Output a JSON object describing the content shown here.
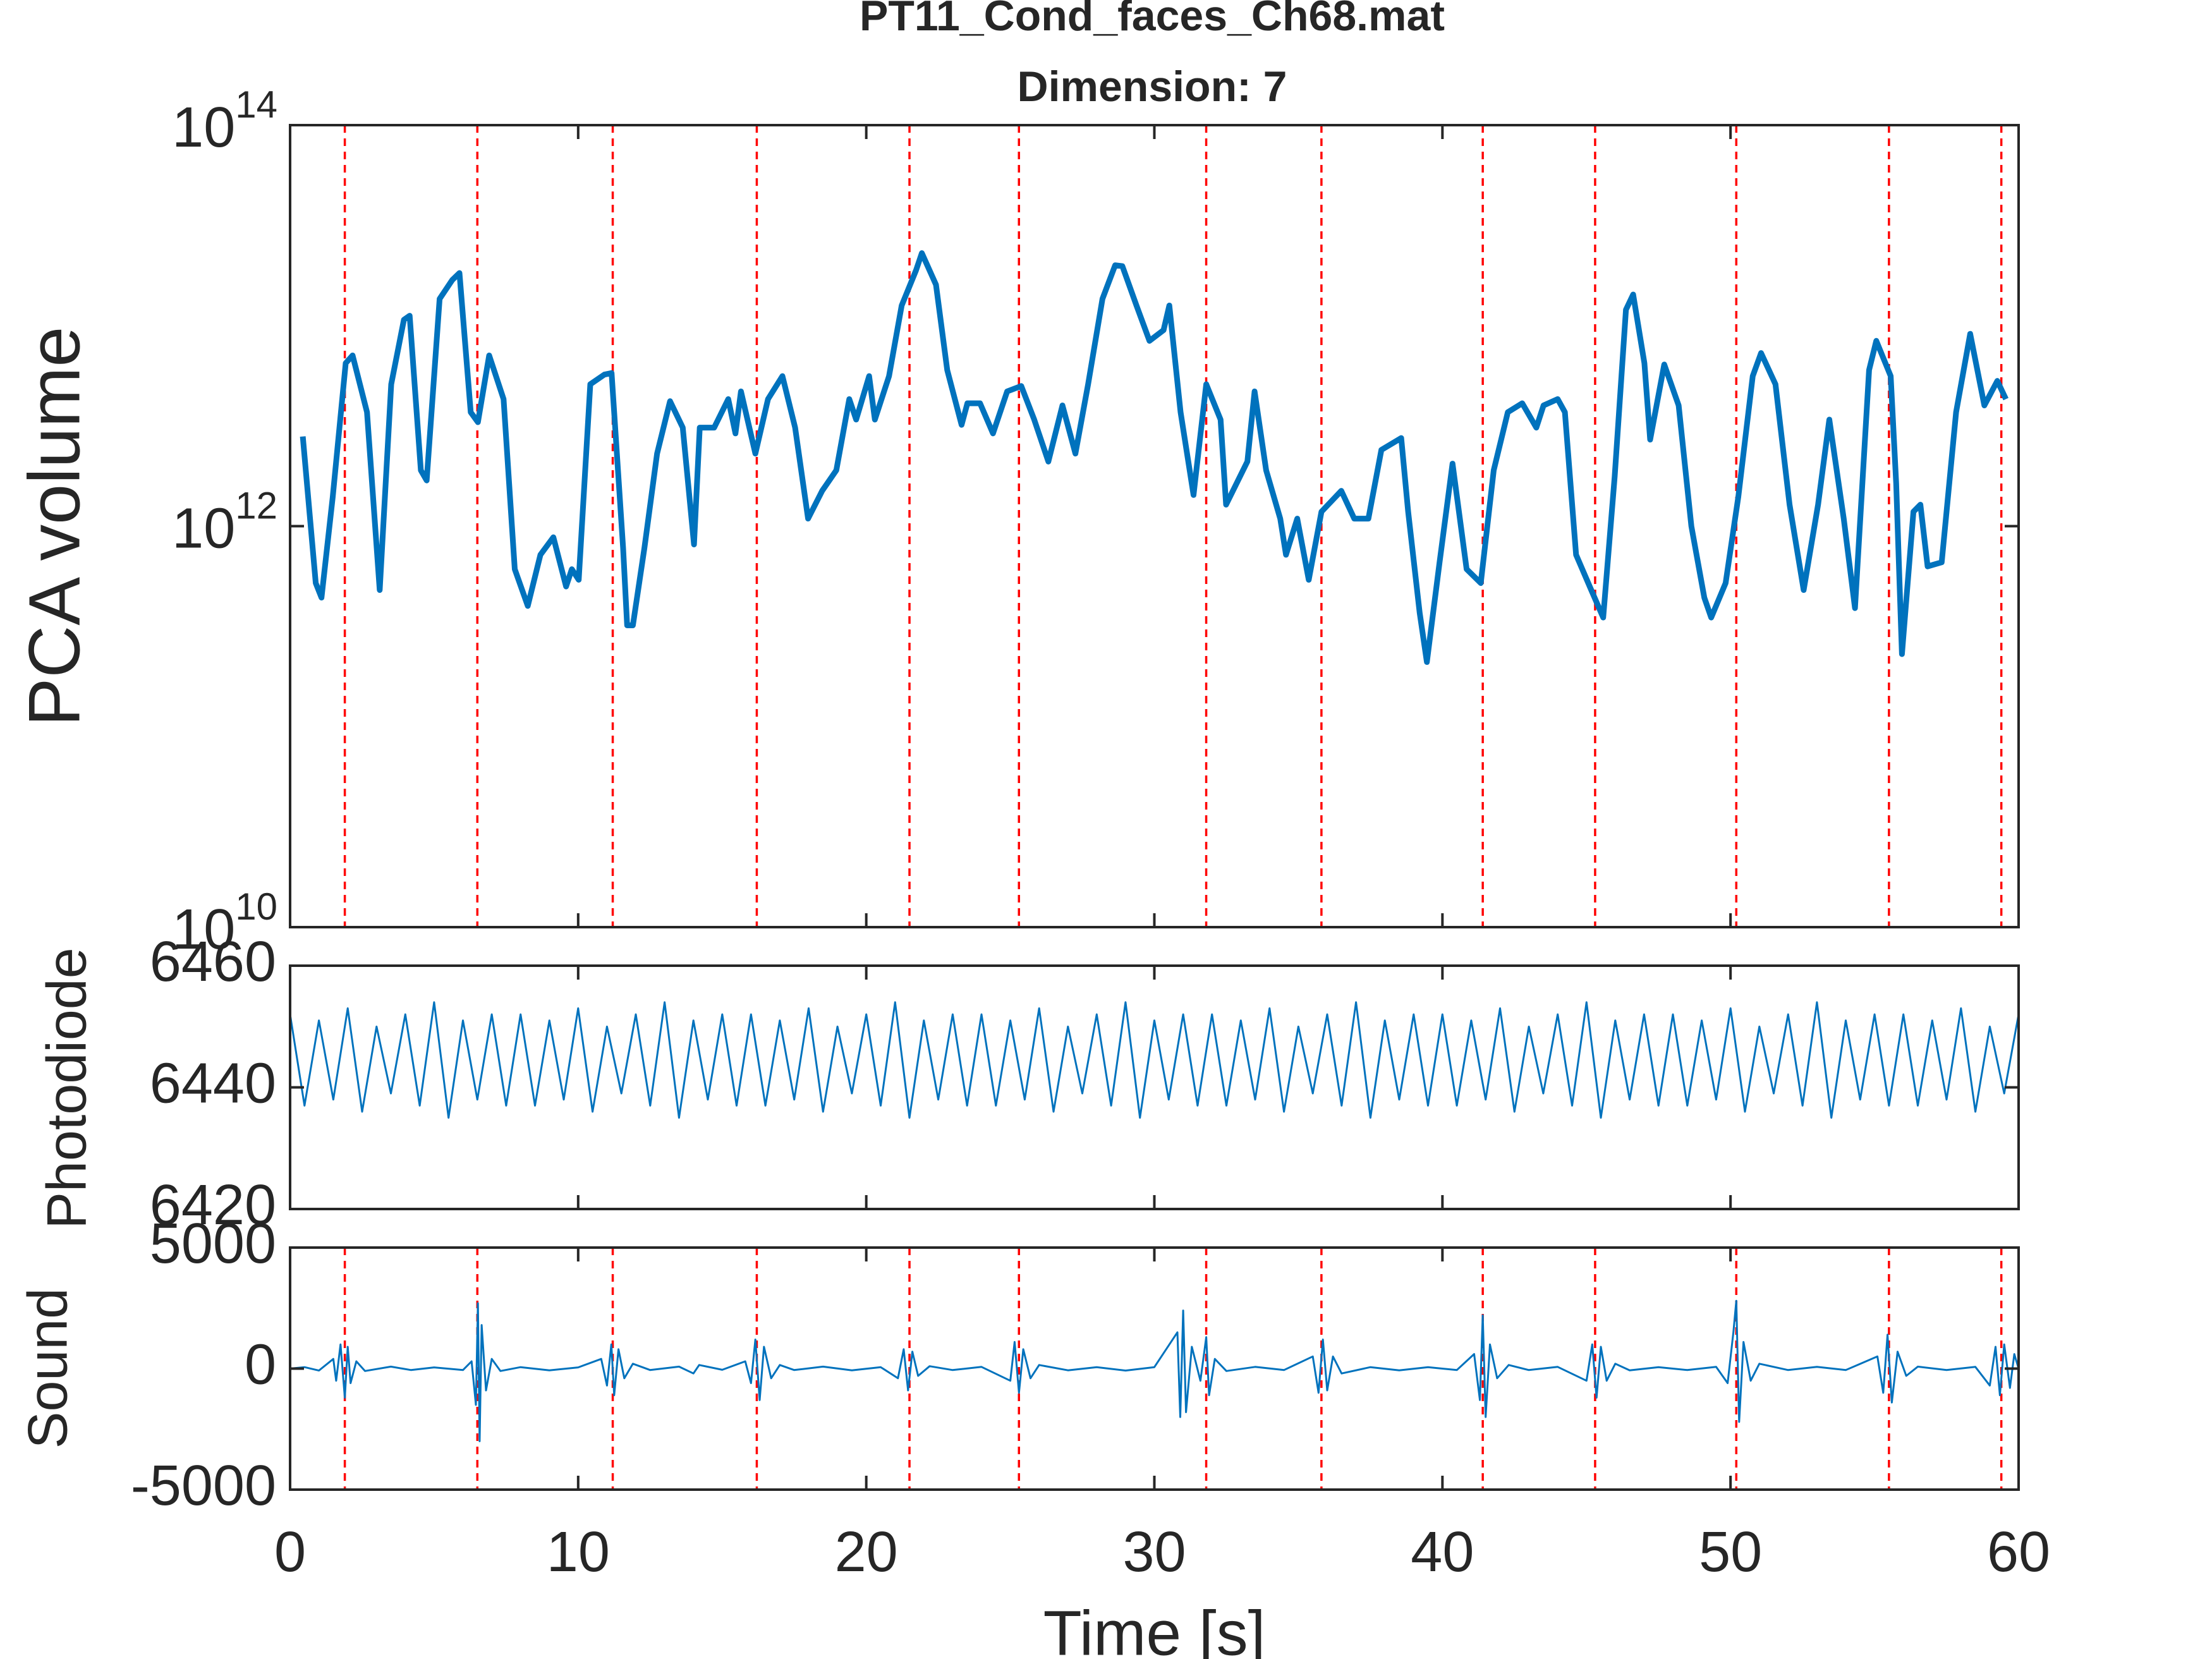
{
  "chart_data": [
    {
      "type": "line",
      "title": "PT11_Cond_faces_Ch68.mat",
      "subtitle": "Dimension: 7",
      "ylabel": "PCA volume",
      "yscale": "log",
      "color": "#0072bd",
      "event_color": "#ff0000",
      "xlim": [
        0,
        60
      ],
      "xticks": [
        0,
        10,
        20,
        30,
        40,
        50,
        60
      ],
      "xtick_labels": false,
      "ylim": [
        10000000000,
        100000000000000
      ],
      "yticks": [
        {
          "value": 10000000000,
          "label": "10",
          "exponent": "10"
        },
        {
          "value": 1000000000000,
          "label": "10",
          "exponent": "12"
        },
        {
          "value": 100000000000000,
          "label": "10",
          "exponent": "14"
        }
      ],
      "event_x": [
        1.9,
        6.5,
        11.2,
        16.2,
        21.5,
        25.3,
        31.8,
        35.8,
        41.4,
        45.3,
        50.2,
        55.5,
        59.4
      ],
      "x": [
        0.44,
        0.89,
        1.09,
        1.48,
        1.93,
        2.17,
        2.67,
        3.11,
        3.51,
        3.95,
        4.15,
        4.54,
        4.74,
        5.19,
        5.63,
        5.88,
        6.27,
        6.52,
        6.91,
        7.41,
        7.8,
        8.25,
        8.69,
        9.14,
        9.58,
        9.78,
        10.02,
        10.42,
        10.91,
        11.16,
        11.56,
        11.7,
        11.9,
        12.3,
        12.74,
        13.19,
        13.63,
        14.02,
        14.22,
        14.72,
        15.21,
        15.46,
        15.65,
        16.15,
        16.59,
        17.09,
        17.53,
        17.98,
        18.47,
        18.96,
        19.41,
        19.65,
        20.1,
        20.3,
        20.79,
        21.23,
        21.73,
        21.93,
        22.42,
        22.81,
        23.31,
        23.51,
        23.95,
        24.4,
        24.89,
        25.38,
        25.83,
        26.32,
        26.81,
        27.26,
        27.7,
        28.2,
        28.64,
        28.89,
        29.38,
        29.83,
        30.32,
        30.52,
        30.91,
        31.36,
        31.8,
        32.3,
        32.49,
        33.23,
        33.48,
        33.88,
        34.37,
        34.57,
        34.96,
        35.36,
        35.8,
        36.49,
        36.94,
        37.43,
        37.88,
        38.57,
        38.81,
        39.21,
        39.46,
        39.9,
        40.35,
        40.84,
        41.33,
        41.78,
        42.27,
        42.77,
        43.26,
        43.51,
        44.0,
        44.25,
        44.64,
        45.14,
        45.58,
        45.98,
        46.37,
        46.62,
        47.01,
        47.21,
        47.7,
        48.2,
        48.64,
        49.09,
        49.33,
        49.83,
        50.27,
        50.77,
        51.06,
        51.56,
        52.05,
        52.54,
        53.04,
        53.43,
        53.93,
        54.32,
        54.81,
        55.06,
        55.56,
        55.75,
        55.95,
        56.35,
        56.59,
        56.84,
        57.33,
        57.83,
        58.32,
        58.81,
        59.26,
        59.56
      ],
      "values": [
        2800000000000.0,
        520000000000.0,
        440000000000.0,
        1400000000000.0,
        6500000000000.0,
        7100000000000.0,
        3700000000000.0,
        480000000000.0,
        5100000000000.0,
        10700000000000.0,
        11200000000000.0,
        1900000000000.0,
        1690000000000.0,
        13600000000000.0,
        16900000000000.0,
        18300000000000.0,
        3700000000000.0,
        3300000000000.0,
        7100000000000.0,
        4300000000000.0,
        610000000000.0,
        400000000000.0,
        720000000000.0,
        880000000000.0,
        500000000000.0,
        610000000000.0,
        540000000000.0,
        5100000000000.0,
        5700000000000.0,
        5800000000000.0,
        780000000000.0,
        320000000000.0,
        320000000000.0,
        780000000000.0,
        2300000000000.0,
        4200000000000.0,
        3100000000000.0,
        810000000000.0,
        3100000000000.0,
        3100000000000.0,
        4300000000000.0,
        2900000000000.0,
        4700000000000.0,
        2300000000000.0,
        4300000000000.0,
        5600000000000.0,
        3100000000000.0,
        1090000000000.0,
        1500000000000.0,
        1900000000000.0,
        4300000000000.0,
        3400000000000.0,
        5600000000000.0,
        3400000000000.0,
        5600000000000.0,
        12600000000000.0,
        18900000000000.0,
        23000000000000.0,
        16000000000000.0,
        6000000000000.0,
        3200000000000.0,
        4100000000000.0,
        4100000000000.0,
        2900000000000.0,
        4700000000000.0,
        5000000000000.0,
        3400000000000.0,
        2100000000000.0,
        4000000000000.0,
        2300000000000.0,
        5100000000000.0,
        13600000000000.0,
        20000000000000.0,
        19800000000000.0,
        12600000000000.0,
        8400000000000.0,
        9500000000000.0,
        12600000000000.0,
        3700000000000.0,
        1430000000000.0,
        5100000000000.0,
        3400000000000.0,
        1280000000000.0,
        2100000000000.0,
        4700000000000.0,
        1900000000000.0,
        1090000000000.0,
        720000000000.0,
        1090000000000.0,
        540000000000.0,
        1180000000000.0,
        1500000000000.0,
        1090000000000.0,
        1090000000000.0,
        2400000000000.0,
        2750000000000.0,
        1180000000000.0,
        370000000000.0,
        210000000000.0,
        660000000000.0,
        2050000000000.0,
        610000000000.0,
        520000000000.0,
        1900000000000.0,
        3700000000000.0,
        4100000000000.0,
        3100000000000.0,
        4000000000000.0,
        4300000000000.0,
        3700000000000.0,
        720000000000.0,
        490000000000.0,
        350000000000.0,
        1770000000000.0,
        12000000000000.0,
        14300000000000.0,
        6500000000000.0,
        2700000000000.0,
        6400000000000.0,
        4000000000000.0,
        1000000000000.0,
        440000000000.0,
        350000000000.0,
        520000000000.0,
        1400000000000.0,
        5600000000000.0,
        7300000000000.0,
        5100000000000.0,
        1280000000000.0,
        480000000000.0,
        1280000000000.0,
        3400000000000.0,
        1090000000000.0,
        390000000000.0,
        6000000000000.0,
        8400000000000.0,
        5600000000000.0,
        1630000000000.0,
        230000000000.0,
        1180000000000.0,
        1280000000000.0,
        630000000000.0,
        660000000000.0,
        3700000000000.0,
        9100000000000.0,
        4000000000000.0,
        5300000000000.0,
        4300000000000.0
      ]
    },
    {
      "type": "line",
      "ylabel": "Photodiode",
      "color": "#0072bd",
      "xlim": [
        0,
        60
      ],
      "xticks": [
        0,
        10,
        20,
        30,
        40,
        50,
        60
      ],
      "xtick_labels": false,
      "ylim": [
        6420,
        6460
      ],
      "yticks": [
        6420,
        6440,
        6460
      ],
      "x": [
        0,
        0.5,
        1,
        1.5,
        2,
        2.5,
        3,
        3.5,
        4,
        4.5,
        5,
        5.5,
        6,
        6.5,
        7,
        7.5,
        8,
        8.5,
        9,
        9.5,
        10,
        10.5,
        11,
        11.5,
        12,
        12.5,
        13,
        13.5,
        14,
        14.5,
        15,
        15.5,
        16,
        16.5,
        17,
        17.5,
        18,
        18.5,
        19,
        19.5,
        20,
        20.5,
        21,
        21.5,
        22,
        22.5,
        23,
        23.5,
        24,
        24.5,
        25,
        25.5,
        26,
        26.5,
        27,
        27.5,
        28,
        28.5,
        29,
        29.5,
        30,
        30.5,
        31,
        31.5,
        32,
        32.5,
        33,
        33.5,
        34,
        34.5,
        35,
        35.5,
        36,
        36.5,
        37,
        37.5,
        38,
        38.5,
        39,
        39.5,
        40,
        40.5,
        41,
        41.5,
        42,
        42.5,
        43,
        43.5,
        44,
        44.5,
        45,
        45.5,
        46,
        46.5,
        47,
        47.5,
        48,
        48.5,
        49,
        49.5,
        50,
        50.5,
        51,
        51.5,
        52,
        52.5,
        53,
        53.5,
        54,
        54.5,
        55,
        55.5,
        56,
        56.5,
        57,
        57.5,
        58,
        58.5,
        59,
        59.5,
        60
      ],
      "values": [
        6452,
        6437,
        6451,
        6438,
        6453,
        6436,
        6450,
        6439,
        6452,
        6437,
        6454,
        6435,
        6451,
        6438,
        6452,
        6437,
        6452,
        6437,
        6451,
        6438,
        6453,
        6436,
        6450,
        6439,
        6452,
        6437,
        6454,
        6435,
        6451,
        6438,
        6452,
        6437,
        6452,
        6437,
        6451,
        6438,
        6453,
        6436,
        6450,
        6439,
        6452,
        6437,
        6454,
        6435,
        6451,
        6438,
        6452,
        6437,
        6452,
        6437,
        6451,
        6438,
        6453,
        6436,
        6450,
        6439,
        6452,
        6437,
        6454,
        6435,
        6451,
        6438,
        6452,
        6437,
        6452,
        6437,
        6451,
        6438,
        6453,
        6436,
        6450,
        6439,
        6452,
        6437,
        6454,
        6435,
        6451,
        6438,
        6452,
        6437,
        6452,
        6437,
        6451,
        6438,
        6453,
        6436,
        6450,
        6439,
        6452,
        6437,
        6454,
        6435,
        6451,
        6438,
        6452,
        6437,
        6452,
        6437,
        6451,
        6438,
        6453,
        6436,
        6450,
        6439,
        6452,
        6437,
        6454,
        6435,
        6451,
        6438,
        6452,
        6437,
        6452,
        6437,
        6451,
        6438,
        6453,
        6436,
        6450,
        6439,
        6452
      ]
    },
    {
      "type": "line",
      "ylabel": "Sound",
      "xlabel": "Time [s]",
      "color": "#0072bd",
      "event_color": "#ff0000",
      "xlim": [
        0,
        60
      ],
      "xticks": [
        0,
        10,
        20,
        30,
        40,
        50,
        60
      ],
      "ylim": [
        -5000,
        5000
      ],
      "yticks": [
        -5000,
        0,
        5000
      ],
      "event_x": [
        1.9,
        6.5,
        11.2,
        16.2,
        21.5,
        25.3,
        31.8,
        35.8,
        41.4,
        45.3,
        50.2,
        55.5,
        59.4
      ],
      "x": [
        0,
        0.5,
        1.0,
        1.5,
        1.6,
        1.75,
        1.9,
        2.0,
        2.1,
        2.3,
        2.6,
        3.5,
        4.2,
        5.0,
        6.0,
        6.3,
        6.45,
        6.52,
        6.58,
        6.65,
        6.8,
        7.0,
        7.3,
        8.0,
        9.0,
        10.0,
        10.8,
        11.0,
        11.15,
        11.25,
        11.4,
        11.6,
        11.9,
        12.5,
        13.5,
        14.0,
        14.2,
        15.0,
        15.8,
        16.0,
        16.15,
        16.3,
        16.45,
        16.7,
        17.0,
        17.5,
        18.5,
        19.5,
        20.5,
        21.1,
        21.3,
        21.45,
        21.6,
        21.8,
        22.2,
        23.0,
        24.0,
        25.0,
        25.15,
        25.3,
        25.45,
        25.7,
        26.0,
        27.0,
        28.0,
        29.0,
        30.0,
        30.8,
        30.9,
        31.0,
        31.1,
        31.3,
        31.6,
        31.8,
        31.9,
        32.1,
        32.5,
        33.5,
        34.5,
        35.5,
        35.7,
        35.85,
        36.0,
        36.2,
        36.5,
        37.5,
        38.5,
        39.5,
        40.5,
        41.1,
        41.3,
        41.4,
        41.5,
        41.65,
        41.9,
        42.3,
        43.0,
        44.0,
        45.0,
        45.2,
        45.35,
        45.5,
        45.7,
        46.0,
        46.5,
        47.5,
        48.5,
        49.5,
        49.9,
        50.1,
        50.2,
        50.3,
        50.45,
        50.7,
        51.0,
        52.0,
        53.0,
        54.0,
        55.1,
        55.3,
        55.45,
        55.6,
        55.8,
        56.1,
        56.5,
        57.5,
        58.5,
        59.0,
        59.2,
        59.35,
        59.5,
        59.7,
        59.85,
        60.0
      ],
      "values": [
        0,
        60,
        -80,
        400,
        -500,
        1000,
        -1200,
        900,
        -600,
        300,
        -100,
        80,
        -60,
        50,
        -60,
        300,
        -1500,
        2700,
        -3000,
        1800,
        -900,
        400,
        -100,
        60,
        -70,
        50,
        400,
        -700,
        1000,
        -1100,
        800,
        -400,
        200,
        -60,
        80,
        -200,
        150,
        -50,
        300,
        -600,
        1200,
        -1300,
        900,
        -400,
        150,
        -60,
        80,
        -70,
        60,
        -400,
        800,
        -900,
        700,
        -300,
        100,
        -60,
        70,
        -500,
        1100,
        -1000,
        800,
        -400,
        150,
        -70,
        60,
        -80,
        60,
        1500,
        -2000,
        2400,
        -1800,
        900,
        -500,
        1300,
        -1100,
        400,
        -100,
        70,
        -60,
        500,
        -1000,
        1200,
        -900,
        500,
        -200,
        60,
        -70,
        60,
        -60,
        600,
        -1300,
        2200,
        -2000,
        1000,
        -400,
        150,
        -60,
        70,
        -500,
        1000,
        -1200,
        900,
        -500,
        200,
        -70,
        60,
        -60,
        70,
        -600,
        1500,
        2800,
        -2200,
        1100,
        -500,
        200,
        -60,
        70,
        -60,
        500,
        -1000,
        1400,
        -1400,
        700,
        -300,
        80,
        -60,
        70,
        -700,
        900,
        -1100,
        1000,
        -800,
        600,
        0
      ]
    }
  ]
}
